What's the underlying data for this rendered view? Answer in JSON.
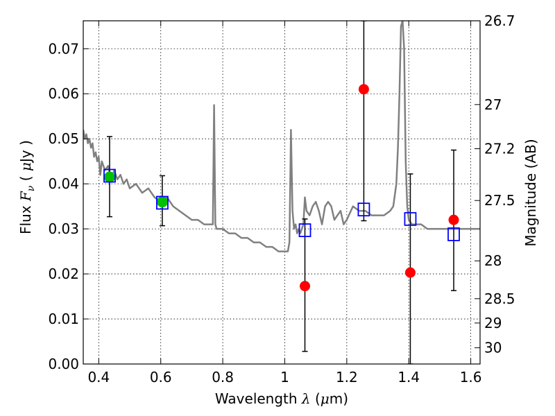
{
  "chart_data": {
    "type": "scatter",
    "xlabel": {
      "prefix": "Wavelength  ",
      "symbol": "λ",
      "unit_open": " (",
      "unit_mu": "μ",
      "unit_rest": "m)"
    },
    "ylabel": {
      "prefix": "Flux  ",
      "symbol": "F",
      "subscript": "ν",
      "unit_open": "  ( ",
      "unit_mu": "μ",
      "unit_rest": "Jy )"
    },
    "y2label": "Magnitude (AB)",
    "xlim": [
      0.35,
      1.63
    ],
    "ylim": [
      0.0,
      0.0762
    ],
    "grid": true,
    "x_ticks": [
      0.4,
      0.6,
      0.8,
      1.0,
      1.2,
      1.4,
      1.6
    ],
    "x_tick_labels": [
      "0.4",
      "0.6",
      "0.8",
      "1",
      "1.2",
      "1.4",
      "1.6"
    ],
    "y_ticks": [
      0.0,
      0.01,
      0.02,
      0.03,
      0.04,
      0.05,
      0.06,
      0.07
    ],
    "y_tick_labels": [
      "0.00",
      "0.01",
      "0.02",
      "0.03",
      "0.04",
      "0.05",
      "0.06",
      "0.07"
    ],
    "y2_ticks": [
      {
        "label": "26.7",
        "flux": 0.0762
      },
      {
        "label": "27",
        "flux": 0.0576
      },
      {
        "label": "27.2",
        "flux": 0.0478
      },
      {
        "label": "27.5",
        "flux": 0.0363
      },
      {
        "label": "28",
        "flux": 0.0229
      },
      {
        "label": "28.5",
        "flux": 0.0145
      },
      {
        "label": "29",
        "flux": 0.0091
      },
      {
        "label": "30",
        "flux": 0.0036
      }
    ],
    "series": [
      {
        "kind": "model_spectrum",
        "color": "#808080",
        "x": [
          0.35,
          0.355,
          0.36,
          0.365,
          0.37,
          0.375,
          0.38,
          0.385,
          0.39,
          0.395,
          0.4,
          0.405,
          0.41,
          0.42,
          0.43,
          0.44,
          0.45,
          0.46,
          0.47,
          0.48,
          0.49,
          0.5,
          0.52,
          0.54,
          0.56,
          0.58,
          0.6,
          0.62,
          0.64,
          0.66,
          0.68,
          0.7,
          0.72,
          0.74,
          0.76,
          0.768,
          0.772,
          0.776,
          0.78,
          0.8,
          0.82,
          0.84,
          0.86,
          0.88,
          0.9,
          0.92,
          0.94,
          0.96,
          0.98,
          1.0,
          1.01,
          1.015,
          1.02,
          1.025,
          1.03,
          1.035,
          1.04,
          1.045,
          1.05,
          1.055,
          1.06,
          1.065,
          1.07,
          1.08,
          1.09,
          1.1,
          1.11,
          1.12,
          1.13,
          1.14,
          1.15,
          1.16,
          1.17,
          1.18,
          1.19,
          1.2,
          1.22,
          1.24,
          1.26,
          1.28,
          1.3,
          1.32,
          1.34,
          1.35,
          1.36,
          1.365,
          1.37,
          1.375,
          1.38,
          1.385,
          1.39,
          1.395,
          1.4,
          1.41,
          1.42,
          1.44,
          1.46,
          1.48,
          1.5,
          1.52,
          1.54,
          1.56,
          1.58,
          1.6,
          1.63
        ],
        "y": [
          0.052,
          0.05,
          0.051,
          0.049,
          0.05,
          0.048,
          0.049,
          0.046,
          0.047,
          0.045,
          0.046,
          0.042,
          0.045,
          0.043,
          0.044,
          0.041,
          0.043,
          0.041,
          0.042,
          0.04,
          0.041,
          0.039,
          0.04,
          0.038,
          0.039,
          0.037,
          0.036,
          0.037,
          0.035,
          0.034,
          0.033,
          0.032,
          0.032,
          0.031,
          0.031,
          0.031,
          0.0575,
          0.031,
          0.03,
          0.03,
          0.029,
          0.029,
          0.028,
          0.028,
          0.027,
          0.027,
          0.026,
          0.026,
          0.025,
          0.025,
          0.025,
          0.027,
          0.052,
          0.034,
          0.03,
          0.031,
          0.029,
          0.03,
          0.029,
          0.03,
          0.031,
          0.037,
          0.034,
          0.033,
          0.035,
          0.036,
          0.034,
          0.031,
          0.035,
          0.036,
          0.035,
          0.032,
          0.033,
          0.034,
          0.031,
          0.032,
          0.035,
          0.034,
          0.034,
          0.033,
          0.033,
          0.033,
          0.034,
          0.035,
          0.04,
          0.048,
          0.06,
          0.075,
          0.0762,
          0.07,
          0.045,
          0.035,
          0.032,
          0.031,
          0.031,
          0.031,
          0.03,
          0.03,
          0.03,
          0.03,
          0.03,
          0.03,
          0.03,
          0.03,
          0.03
        ]
      },
      {
        "kind": "green_points",
        "color": "#00c000",
        "x": [
          0.435,
          0.605
        ],
        "y": [
          0.0415,
          0.036
        ]
      },
      {
        "kind": "red_points_with_errors",
        "color": "#ff0000",
        "x": [
          1.065,
          1.255,
          1.405,
          1.545
        ],
        "y": [
          0.0173,
          0.061,
          0.0203,
          0.032
        ],
        "yerr_low": [
          0.0028,
          0.0318,
          0.0,
          0.0163
        ],
        "yerr_high": [
          0.0322,
          0.0762,
          0.0422,
          0.0475
        ]
      },
      {
        "kind": "blue_squares",
        "color": "#0000ff",
        "x": [
          0.435,
          0.605,
          1.065,
          1.255,
          1.405,
          1.545
        ],
        "y": [
          0.0418,
          0.0358,
          0.0297,
          0.0343,
          0.0322,
          0.0288
        ]
      },
      {
        "kind": "green_errorbars",
        "color": "#000000",
        "x": [
          0.435,
          0.605
        ],
        "yerr_low": [
          0.0327,
          0.0307
        ],
        "yerr_high": [
          0.0505,
          0.0418
        ]
      }
    ]
  }
}
